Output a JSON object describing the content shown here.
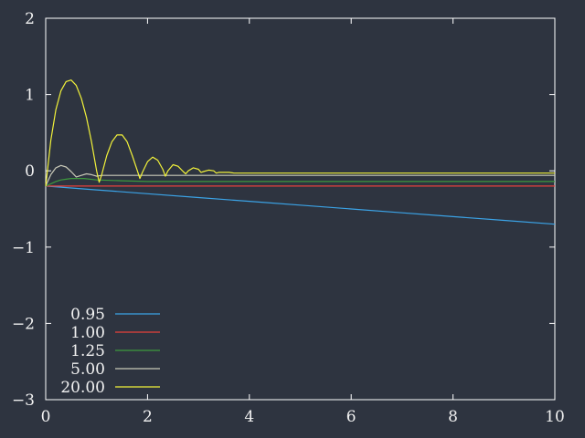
{
  "chart_data": {
    "type": "line",
    "title": "",
    "xlabel": "",
    "ylabel": "",
    "xlim": [
      0,
      10
    ],
    "ylim": [
      -3,
      2
    ],
    "xticks": [
      0,
      2,
      4,
      6,
      8,
      10
    ],
    "yticks": [
      -3,
      -2,
      -1,
      0,
      1,
      2
    ],
    "xtick_labels": [
      "0",
      "2",
      "4",
      "6",
      "8",
      "10"
    ],
    "ytick_labels": [
      "−3",
      "−2",
      "−1",
      "0",
      "1",
      "2"
    ],
    "grid": false,
    "legend_position": "bottom-left",
    "series": [
      {
        "name": "0.95",
        "color": "#3ba3e6",
        "x": [
          0,
          1,
          2,
          3,
          4,
          5,
          6,
          7,
          8,
          9,
          10
        ],
        "y": [
          -0.2,
          -0.25,
          -0.3,
          -0.35,
          -0.4,
          -0.45,
          -0.5,
          -0.55,
          -0.6,
          -0.65,
          -0.7
        ]
      },
      {
        "name": "1.00",
        "color": "#e8413b",
        "x": [
          0,
          10
        ],
        "y": [
          -0.2,
          -0.2
        ]
      },
      {
        "name": "1.25",
        "color": "#3d9a3d",
        "x": [
          0,
          0.1,
          0.2,
          0.3,
          0.4,
          0.5,
          0.75,
          1,
          1.5,
          2,
          3,
          4,
          6,
          8,
          10
        ],
        "y": [
          -0.2,
          -0.17,
          -0.14,
          -0.12,
          -0.11,
          -0.1,
          -0.1,
          -0.12,
          -0.13,
          -0.14,
          -0.14,
          -0.14,
          -0.14,
          -0.14,
          -0.14
        ]
      },
      {
        "name": "5.00",
        "color": "#c9c9b8",
        "x": [
          0,
          0.1,
          0.2,
          0.3,
          0.4,
          0.5,
          0.6,
          0.7,
          0.8,
          0.9,
          1.0,
          1.1,
          1.2,
          1.4,
          1.6,
          1.8,
          2.0,
          2.5,
          3,
          4,
          5,
          6,
          7,
          8,
          9,
          10
        ],
        "y": [
          -0.2,
          -0.05,
          0.04,
          0.07,
          0.05,
          -0.01,
          -0.08,
          -0.06,
          -0.04,
          -0.05,
          -0.07,
          -0.06,
          -0.06,
          -0.06,
          -0.06,
          -0.06,
          -0.06,
          -0.06,
          -0.06,
          -0.06,
          -0.06,
          -0.06,
          -0.06,
          -0.06,
          -0.06,
          -0.06
        ]
      },
      {
        "name": "20.00",
        "color": "#f2f23a",
        "x": [
          0,
          0.1,
          0.2,
          0.3,
          0.4,
          0.5,
          0.6,
          0.7,
          0.8,
          0.9,
          1.0,
          1.05,
          1.1,
          1.2,
          1.3,
          1.4,
          1.5,
          1.6,
          1.7,
          1.8,
          1.85,
          1.9,
          2.0,
          2.1,
          2.2,
          2.3,
          2.35,
          2.4,
          2.5,
          2.6,
          2.7,
          2.75,
          2.8,
          2.9,
          3.0,
          3.05,
          3.1,
          3.2,
          3.3,
          3.35,
          3.4,
          3.5,
          3.6,
          3.7,
          4,
          5,
          6,
          7,
          8,
          9,
          10
        ],
        "y": [
          -0.2,
          0.4,
          0.8,
          1.05,
          1.17,
          1.19,
          1.12,
          0.95,
          0.7,
          0.38,
          0.0,
          -0.15,
          -0.05,
          0.2,
          0.38,
          0.47,
          0.47,
          0.38,
          0.2,
          0.0,
          -0.1,
          -0.02,
          0.12,
          0.18,
          0.14,
          0.02,
          -0.07,
          0.0,
          0.08,
          0.06,
          -0.01,
          -0.04,
          0.0,
          0.04,
          0.02,
          -0.02,
          -0.01,
          0.01,
          0.0,
          -0.03,
          -0.02,
          -0.02,
          -0.02,
          -0.03,
          -0.03,
          -0.03,
          -0.03,
          -0.03,
          -0.03,
          -0.03,
          -0.03
        ]
      }
    ]
  }
}
